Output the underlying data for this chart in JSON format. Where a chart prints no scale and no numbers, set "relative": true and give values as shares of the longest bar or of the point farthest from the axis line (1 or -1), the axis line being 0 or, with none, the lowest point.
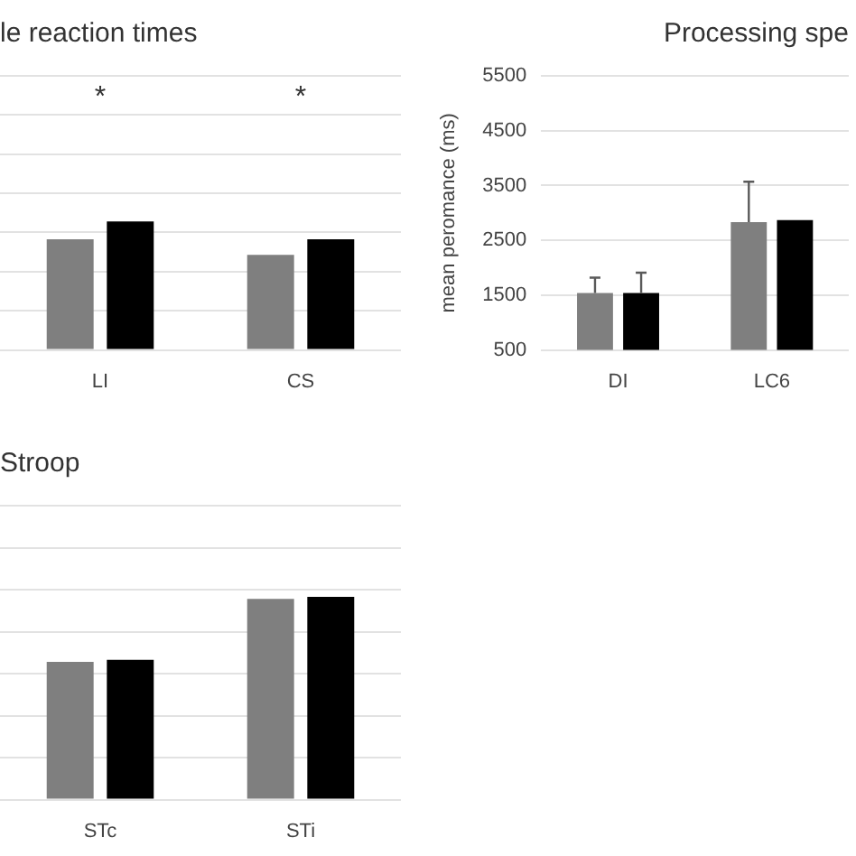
{
  "chart_data": [
    {
      "type": "bar",
      "title": "le reaction times",
      "categories": [
        "LI",
        "CS"
      ],
      "relative": true,
      "grid": "y",
      "tick_labels": "x",
      "series": [
        {
          "color": "#7f7f7f",
          "values": [
            0.86,
            0.74
          ]
        },
        {
          "color": "#000000",
          "values": [
            1,
            0.86
          ]
        }
      ],
      "annotations": [
        "*",
        "*"
      ]
    },
    {
      "type": "bar",
      "title": "Processing spe",
      "ylabel": "mean peromance (ms)",
      "categories": [
        "DI",
        "LC6"
      ],
      "ylim": [
        500,
        5500
      ],
      "yticks": [
        500,
        1500,
        2500,
        3500,
        4500,
        5500
      ],
      "grid": "y",
      "series": [
        {
          "color": "#7f7f7f",
          "values": [
            1540,
            2830
          ],
          "errors": [
            [
              1540,
              1820
            ],
            [
              2830,
              3570
            ]
          ]
        },
        {
          "color": "#000000",
          "values": [
            1540,
            2870
          ],
          "errors": [
            [
              1540,
              1910
            ],
            null
          ]
        }
      ]
    },
    {
      "type": "bar",
      "title": "Stroop",
      "categories": [
        "STc",
        "STi"
      ],
      "relative": true,
      "grid": "y",
      "tick_labels": "x",
      "series": [
        {
          "color": "#7f7f7f",
          "values": [
            0.68,
            0.99
          ]
        },
        {
          "color": "#000000",
          "values": [
            0.69,
            1
          ]
        }
      ]
    }
  ]
}
